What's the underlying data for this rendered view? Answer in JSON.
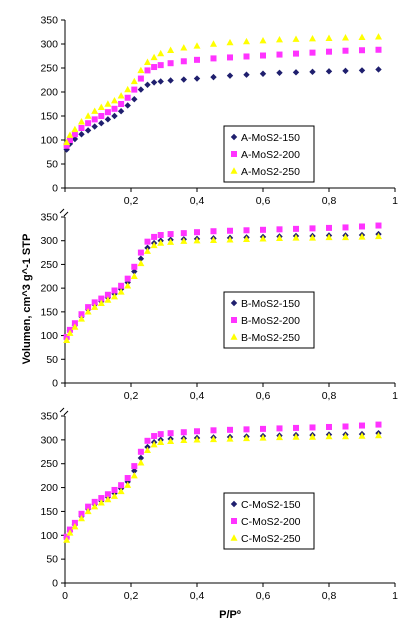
{
  "xlabel": "P/Pº",
  "ylabel": "Volumen, cm^3 g^-1  STP",
  "colors": {
    "series1": "#1f1f6e",
    "series2": "#ff33ff",
    "series3": "#ffff00",
    "axis": "#000000"
  },
  "chart_data": [
    {
      "type": "scatter",
      "xlim": [
        0,
        1
      ],
      "ylim": [
        0,
        350
      ],
      "xticks": [
        "0",
        "0,2",
        "0,4",
        "0,6",
        "0,8",
        "1"
      ],
      "yticks": [
        "0",
        "50",
        "100",
        "150",
        "200",
        "250",
        "300",
        "350"
      ],
      "legend_placement": "middle-right",
      "grid": false,
      "series": [
        {
          "name": "A-MoS2-150",
          "marker": "diamond",
          "x": [
            0.005,
            0.015,
            0.03,
            0.05,
            0.07,
            0.09,
            0.11,
            0.13,
            0.15,
            0.17,
            0.19,
            0.21,
            0.23,
            0.25,
            0.27,
            0.29,
            0.32,
            0.36,
            0.4,
            0.45,
            0.5,
            0.55,
            0.6,
            0.65,
            0.7,
            0.75,
            0.8,
            0.85,
            0.9,
            0.95
          ],
          "y": [
            80,
            92,
            102,
            112,
            120,
            128,
            135,
            143,
            150,
            160,
            172,
            185,
            205,
            215,
            220,
            222,
            224,
            226,
            228,
            231,
            234,
            236,
            238,
            240,
            241,
            242,
            243,
            244,
            245,
            247
          ]
        },
        {
          "name": "A-MoS2-200",
          "marker": "square",
          "x": [
            0.005,
            0.015,
            0.03,
            0.05,
            0.07,
            0.09,
            0.11,
            0.13,
            0.15,
            0.17,
            0.19,
            0.21,
            0.23,
            0.25,
            0.27,
            0.29,
            0.32,
            0.36,
            0.4,
            0.45,
            0.5,
            0.55,
            0.6,
            0.65,
            0.7,
            0.75,
            0.8,
            0.85,
            0.9,
            0.95
          ],
          "y": [
            88,
            100,
            112,
            125,
            135,
            143,
            150,
            158,
            165,
            175,
            188,
            205,
            228,
            245,
            252,
            256,
            260,
            264,
            267,
            270,
            272,
            274,
            276,
            278,
            280,
            282,
            284,
            286,
            287,
            288
          ]
        },
        {
          "name": "A-MoS2-250",
          "marker": "triangle",
          "x": [
            0.005,
            0.015,
            0.03,
            0.05,
            0.07,
            0.09,
            0.11,
            0.13,
            0.15,
            0.17,
            0.19,
            0.21,
            0.23,
            0.25,
            0.27,
            0.29,
            0.32,
            0.36,
            0.4,
            0.45,
            0.5,
            0.55,
            0.6,
            0.65,
            0.7,
            0.75,
            0.8,
            0.85,
            0.9,
            0.95
          ],
          "y": [
            95,
            110,
            122,
            138,
            150,
            160,
            168,
            175,
            182,
            192,
            205,
            222,
            245,
            262,
            272,
            280,
            287,
            292,
            296,
            300,
            303,
            305,
            307,
            309,
            310,
            311,
            312,
            313,
            314,
            315
          ]
        }
      ]
    },
    {
      "type": "scatter",
      "xlim": [
        0,
        1
      ],
      "ylim": [
        0,
        350
      ],
      "xticks": [
        "0",
        "0,2",
        "0,4",
        "0,6",
        "0,8",
        "1"
      ],
      "yticks": [
        "0",
        "50",
        "100",
        "150",
        "200",
        "250",
        "300",
        "350"
      ],
      "legend_placement": "middle-right",
      "grid": false,
      "series": [
        {
          "name": "B-MoS2-150",
          "marker": "diamond",
          "x": [
            0.005,
            0.015,
            0.03,
            0.05,
            0.07,
            0.09,
            0.11,
            0.13,
            0.15,
            0.17,
            0.19,
            0.21,
            0.23,
            0.25,
            0.27,
            0.29,
            0.32,
            0.36,
            0.4,
            0.45,
            0.5,
            0.55,
            0.6,
            0.65,
            0.7,
            0.75,
            0.8,
            0.85,
            0.9,
            0.95
          ],
          "y": [
            95,
            110,
            122,
            140,
            155,
            165,
            172,
            180,
            188,
            198,
            212,
            235,
            262,
            285,
            295,
            300,
            302,
            303,
            304,
            305,
            306,
            307,
            308,
            309,
            310,
            310,
            311,
            311,
            312,
            314
          ]
        },
        {
          "name": "B-MoS2-200",
          "marker": "square",
          "x": [
            0.005,
            0.015,
            0.03,
            0.05,
            0.07,
            0.09,
            0.11,
            0.13,
            0.15,
            0.17,
            0.19,
            0.21,
            0.23,
            0.25,
            0.27,
            0.29,
            0.32,
            0.36,
            0.4,
            0.45,
            0.5,
            0.55,
            0.6,
            0.65,
            0.7,
            0.75,
            0.8,
            0.85,
            0.9,
            0.95
          ],
          "y": [
            97,
            112,
            126,
            145,
            160,
            170,
            178,
            186,
            195,
            205,
            220,
            245,
            275,
            298,
            308,
            312,
            314,
            316,
            318,
            320,
            321,
            322,
            323,
            324,
            325,
            326,
            327,
            328,
            330,
            332
          ]
        },
        {
          "name": "B-MoS2-250",
          "marker": "triangle",
          "x": [
            0.005,
            0.015,
            0.03,
            0.05,
            0.07,
            0.09,
            0.11,
            0.13,
            0.15,
            0.17,
            0.19,
            0.21,
            0.23,
            0.25,
            0.27,
            0.29,
            0.32,
            0.36,
            0.4,
            0.45,
            0.5,
            0.55,
            0.6,
            0.65,
            0.7,
            0.75,
            0.8,
            0.85,
            0.9,
            0.95
          ],
          "y": [
            90,
            105,
            118,
            135,
            150,
            160,
            168,
            175,
            182,
            192,
            205,
            225,
            252,
            278,
            290,
            295,
            297,
            299,
            300,
            301,
            302,
            303,
            304,
            305,
            306,
            306,
            307,
            307,
            308,
            309
          ]
        }
      ]
    },
    {
      "type": "scatter",
      "xlim": [
        0,
        1
      ],
      "ylim": [
        0,
        350
      ],
      "xticks": [
        "0",
        "0,2",
        "0,4",
        "0,6",
        "0,8",
        "1"
      ],
      "yticks": [
        "0",
        "50",
        "100",
        "150",
        "200",
        "250",
        "300",
        "350"
      ],
      "legend_placement": "bottom-right",
      "grid": false,
      "series": [
        {
          "name": "C-MoS2-150",
          "marker": "diamond",
          "x": [
            0.005,
            0.015,
            0.03,
            0.05,
            0.07,
            0.09,
            0.11,
            0.13,
            0.15,
            0.17,
            0.19,
            0.21,
            0.23,
            0.25,
            0.27,
            0.29,
            0.32,
            0.36,
            0.4,
            0.45,
            0.5,
            0.55,
            0.6,
            0.65,
            0.7,
            0.75,
            0.8,
            0.85,
            0.9,
            0.95
          ],
          "y": [
            95,
            108,
            122,
            140,
            155,
            165,
            172,
            180,
            188,
            198,
            212,
            235,
            262,
            285,
            295,
            300,
            302,
            303,
            304,
            305,
            306,
            307,
            308,
            309,
            310,
            310,
            311,
            311,
            312,
            314
          ]
        },
        {
          "name": "C-MoS2-200",
          "marker": "square",
          "x": [
            0.005,
            0.015,
            0.03,
            0.05,
            0.07,
            0.09,
            0.11,
            0.13,
            0.15,
            0.17,
            0.19,
            0.21,
            0.23,
            0.25,
            0.27,
            0.29,
            0.32,
            0.36,
            0.4,
            0.45,
            0.5,
            0.55,
            0.6,
            0.65,
            0.7,
            0.75,
            0.8,
            0.85,
            0.9,
            0.95
          ],
          "y": [
            97,
            112,
            126,
            145,
            160,
            170,
            178,
            186,
            195,
            205,
            220,
            245,
            275,
            298,
            308,
            312,
            314,
            316,
            318,
            320,
            321,
            322,
            323,
            324,
            325,
            326,
            327,
            328,
            330,
            332
          ]
        },
        {
          "name": "C-MoS2-250",
          "marker": "triangle",
          "x": [
            0.005,
            0.015,
            0.03,
            0.05,
            0.07,
            0.09,
            0.11,
            0.13,
            0.15,
            0.17,
            0.19,
            0.21,
            0.23,
            0.25,
            0.27,
            0.29,
            0.32,
            0.36,
            0.4,
            0.45,
            0.5,
            0.55,
            0.6,
            0.65,
            0.7,
            0.75,
            0.8,
            0.85,
            0.9,
            0.95
          ],
          "y": [
            90,
            105,
            118,
            135,
            150,
            160,
            168,
            175,
            182,
            192,
            205,
            225,
            252,
            278,
            290,
            295,
            297,
            299,
            300,
            301,
            302,
            303,
            304,
            305,
            306,
            306,
            307,
            307,
            308,
            309
          ]
        }
      ]
    }
  ]
}
